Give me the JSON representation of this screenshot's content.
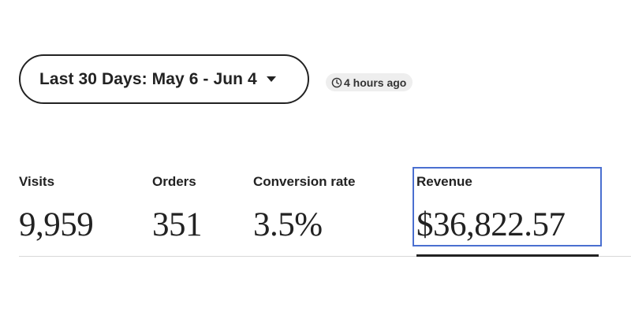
{
  "date_range": {
    "label": "Last 30 Days: May 6 - Jun 4",
    "dropdown_icon": "caret-down-icon"
  },
  "last_updated": {
    "icon": "clock-icon",
    "text": "4 hours ago"
  },
  "stats": [
    {
      "key": "visits",
      "label": "Visits",
      "value": "9,959"
    },
    {
      "key": "orders",
      "label": "Orders",
      "value": "351"
    },
    {
      "key": "conversion_rate",
      "label": "Conversion rate",
      "value": "3.5%"
    },
    {
      "key": "revenue",
      "label": "Revenue",
      "value": "$36,822.57",
      "selected": true
    }
  ],
  "colors": {
    "text": "#222222",
    "highlight_border": "#4a6fd0",
    "badge_bg": "#eeeeee",
    "divider": "#d8d8d8"
  }
}
